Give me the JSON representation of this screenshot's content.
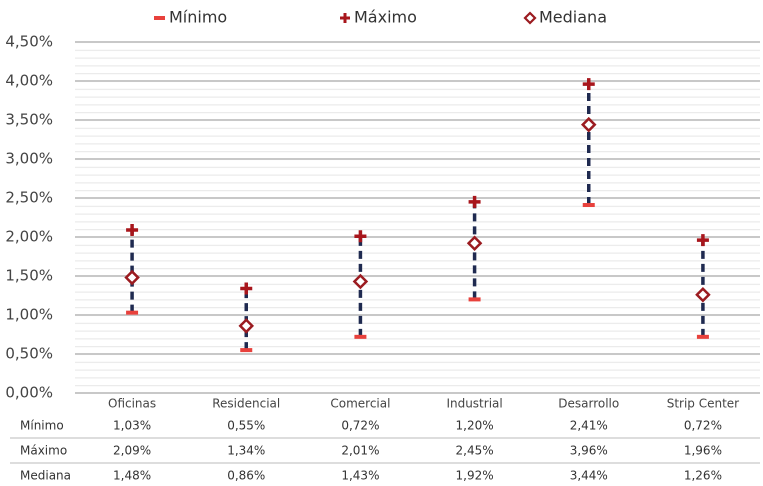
{
  "chart_data": {
    "type": "range",
    "categories": [
      "Oficinas",
      "Residencial",
      "Comercial",
      "Industrial",
      "Desarrollo",
      "Strip Center"
    ],
    "series": [
      {
        "name": "Mínimo",
        "color": "#e8413c",
        "marker": "dash",
        "values": [
          1.03,
          0.55,
          0.72,
          1.2,
          2.41,
          0.72
        ],
        "value_labels": [
          "1,03%",
          "0,55%",
          "0,72%",
          "1,20%",
          "2,41%",
          "0,72%"
        ]
      },
      {
        "name": "Máximo",
        "color": "#a8161c",
        "marker": "plus",
        "values": [
          2.09,
          1.34,
          2.01,
          2.45,
          3.96,
          1.96
        ],
        "value_labels": [
          "2,09%",
          "1,34%",
          "2,01%",
          "2,45%",
          "3,96%",
          "1,96%"
        ]
      },
      {
        "name": "Mediana",
        "color": "#9b1b20",
        "marker": "diamond",
        "values": [
          1.48,
          0.86,
          1.43,
          1.92,
          3.44,
          1.26
        ],
        "value_labels": [
          "1,48%",
          "0,86%",
          "1,43%",
          "1,92%",
          "3,44%",
          "1,26%"
        ]
      }
    ],
    "range_color": "#1f2a50",
    "ylim": [
      0,
      4.5
    ],
    "yticks": [
      {
        "value": 0,
        "label": "0,00%"
      },
      {
        "value": 0.5,
        "label": "0,50%"
      },
      {
        "value": 1,
        "label": "1,00%"
      },
      {
        "value": 1.5,
        "label": "1,50%"
      },
      {
        "value": 2,
        "label": "2,00%"
      },
      {
        "value": 2.5,
        "label": "2,50%"
      },
      {
        "value": 3,
        "label": "3,00%"
      },
      {
        "value": 3.5,
        "label": "3,50%"
      },
      {
        "value": 4,
        "label": "4,00%"
      },
      {
        "value": 4.5,
        "label": "4,50%"
      }
    ],
    "grid": true,
    "legend": "top"
  }
}
